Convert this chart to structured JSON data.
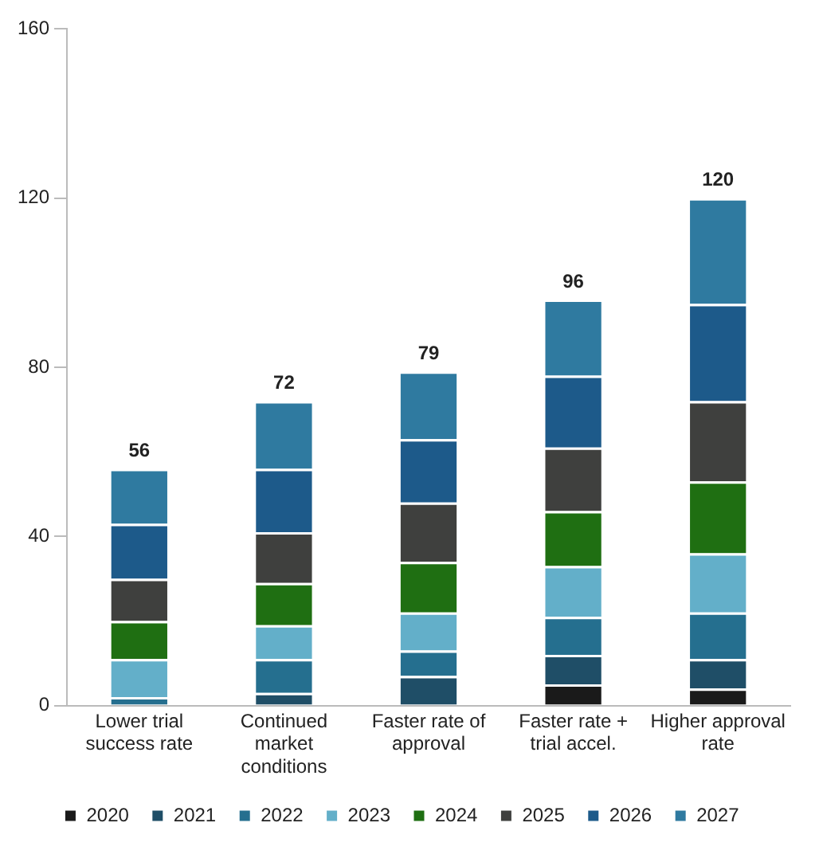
{
  "chart_data": {
    "type": "bar",
    "stacked": true,
    "categories": [
      "Lower trial success rate",
      "Continued market conditions",
      "Faster rate of approval",
      "Faster rate + trial accel.",
      "Higher approval rate"
    ],
    "series": [
      {
        "name": "2020",
        "color": "#1a1a1a",
        "values": [
          0,
          0,
          0,
          5,
          4
        ]
      },
      {
        "name": "2021",
        "color": "#1f4e67",
        "values": [
          0,
          3,
          7,
          7,
          7
        ]
      },
      {
        "name": "2022",
        "color": "#256f8f",
        "values": [
          2,
          8,
          6,
          9,
          11
        ]
      },
      {
        "name": "2023",
        "color": "#63afc9",
        "values": [
          9,
          8,
          9,
          12,
          14
        ]
      },
      {
        "name": "2024",
        "color": "#1f6f12",
        "values": [
          9,
          10,
          12,
          13,
          17
        ]
      },
      {
        "name": "2025",
        "color": "#3f403e",
        "values": [
          10,
          12,
          14,
          15,
          19
        ]
      },
      {
        "name": "2026",
        "color": "#1d5a8a",
        "values": [
          13,
          15,
          15,
          17,
          23
        ]
      },
      {
        "name": "2027",
        "color": "#2f7aa0",
        "values": [
          13,
          16,
          16,
          18,
          25
        ]
      }
    ],
    "totals": [
      "56",
      "72",
      "79",
      "96",
      "120"
    ],
    "ylim": [
      0,
      160
    ],
    "yticks": [
      0,
      40,
      80,
      120,
      160
    ],
    "grid": false,
    "legend": "bottom"
  }
}
